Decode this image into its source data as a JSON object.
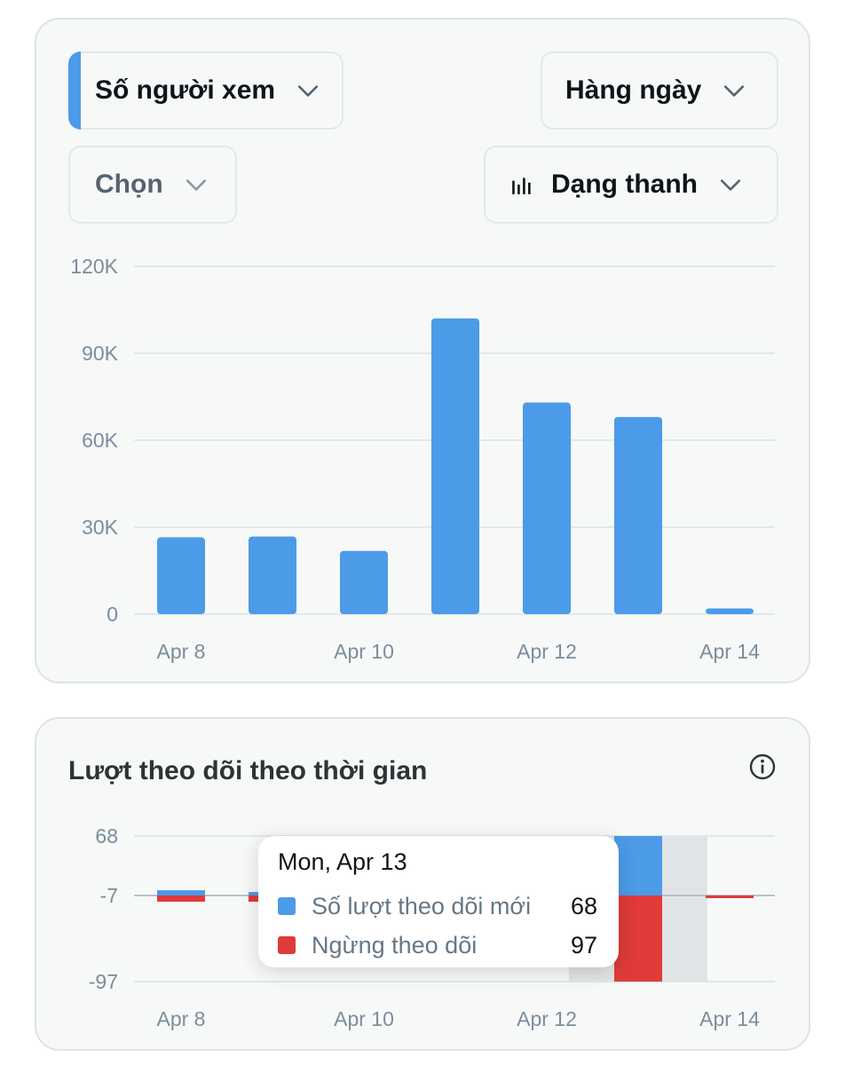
{
  "views_card": {
    "metric_dropdown": {
      "label": "Số người xem"
    },
    "period_dropdown": {
      "label": "Hàng ngày"
    },
    "select_dropdown": {
      "label": "Chọn"
    },
    "chart_type_dropdown": {
      "label": "Dạng thanh",
      "icon": "bar-chart-icon"
    }
  },
  "follows_card": {
    "title": "Lượt theo dõi theo thời gian",
    "info_icon": "info-icon",
    "tooltip": {
      "date": "Mon, Apr 13",
      "rows": [
        {
          "name": "Số lượt theo dõi mới",
          "value": "68",
          "color": "#4c9be8"
        },
        {
          "name": "Ngừng theo dõi",
          "value": "97",
          "color": "#e03a3a"
        }
      ]
    }
  },
  "colors": {
    "primary": "#4c9be8",
    "negative": "#e03a3a",
    "grid": "#e2e7ea",
    "axis_text": "#7b8d9b"
  },
  "chart_data": [
    {
      "type": "bar",
      "categories": [
        "Apr 8",
        "Apr 9",
        "Apr 10",
        "Apr 11",
        "Apr 12",
        "Apr 13",
        "Apr 14"
      ],
      "values": [
        26500,
        26800,
        21800,
        102000,
        73000,
        68000,
        2000
      ],
      "yticks": [
        "120K",
        "90K",
        "60K",
        "30K",
        "0"
      ],
      "ytick_values": [
        120000,
        90000,
        60000,
        30000,
        0
      ],
      "xtick_labels": [
        "Apr 8",
        "Apr 10",
        "Apr 12",
        "Apr 14"
      ],
      "xtick_index": [
        0,
        2,
        4,
        6
      ],
      "ylim": [
        0,
        120000
      ],
      "grid": true
    },
    {
      "type": "bar",
      "categories": [
        "Apr 8",
        "Apr 9",
        "Apr 10",
        "Apr 11",
        "Apr 12",
        "Apr 13",
        "Apr 14"
      ],
      "series": [
        {
          "name": "Số lượt theo dõi mới",
          "values": [
            6,
            4,
            0,
            0,
            0,
            68,
            0
          ]
        },
        {
          "name": "Ngừng theo dõi",
          "values": [
            7,
            7,
            0,
            0,
            0,
            97,
            2
          ]
        }
      ],
      "yticks": [
        "68",
        "-7",
        "-97"
      ],
      "ytick_values": [
        68,
        -7,
        -97
      ],
      "xtick_labels": [
        "Apr 8",
        "Apr 10",
        "Apr 12",
        "Apr 14"
      ],
      "xtick_index": [
        0,
        2,
        4,
        6
      ],
      "highlight": "Apr 13",
      "grid": true
    }
  ]
}
